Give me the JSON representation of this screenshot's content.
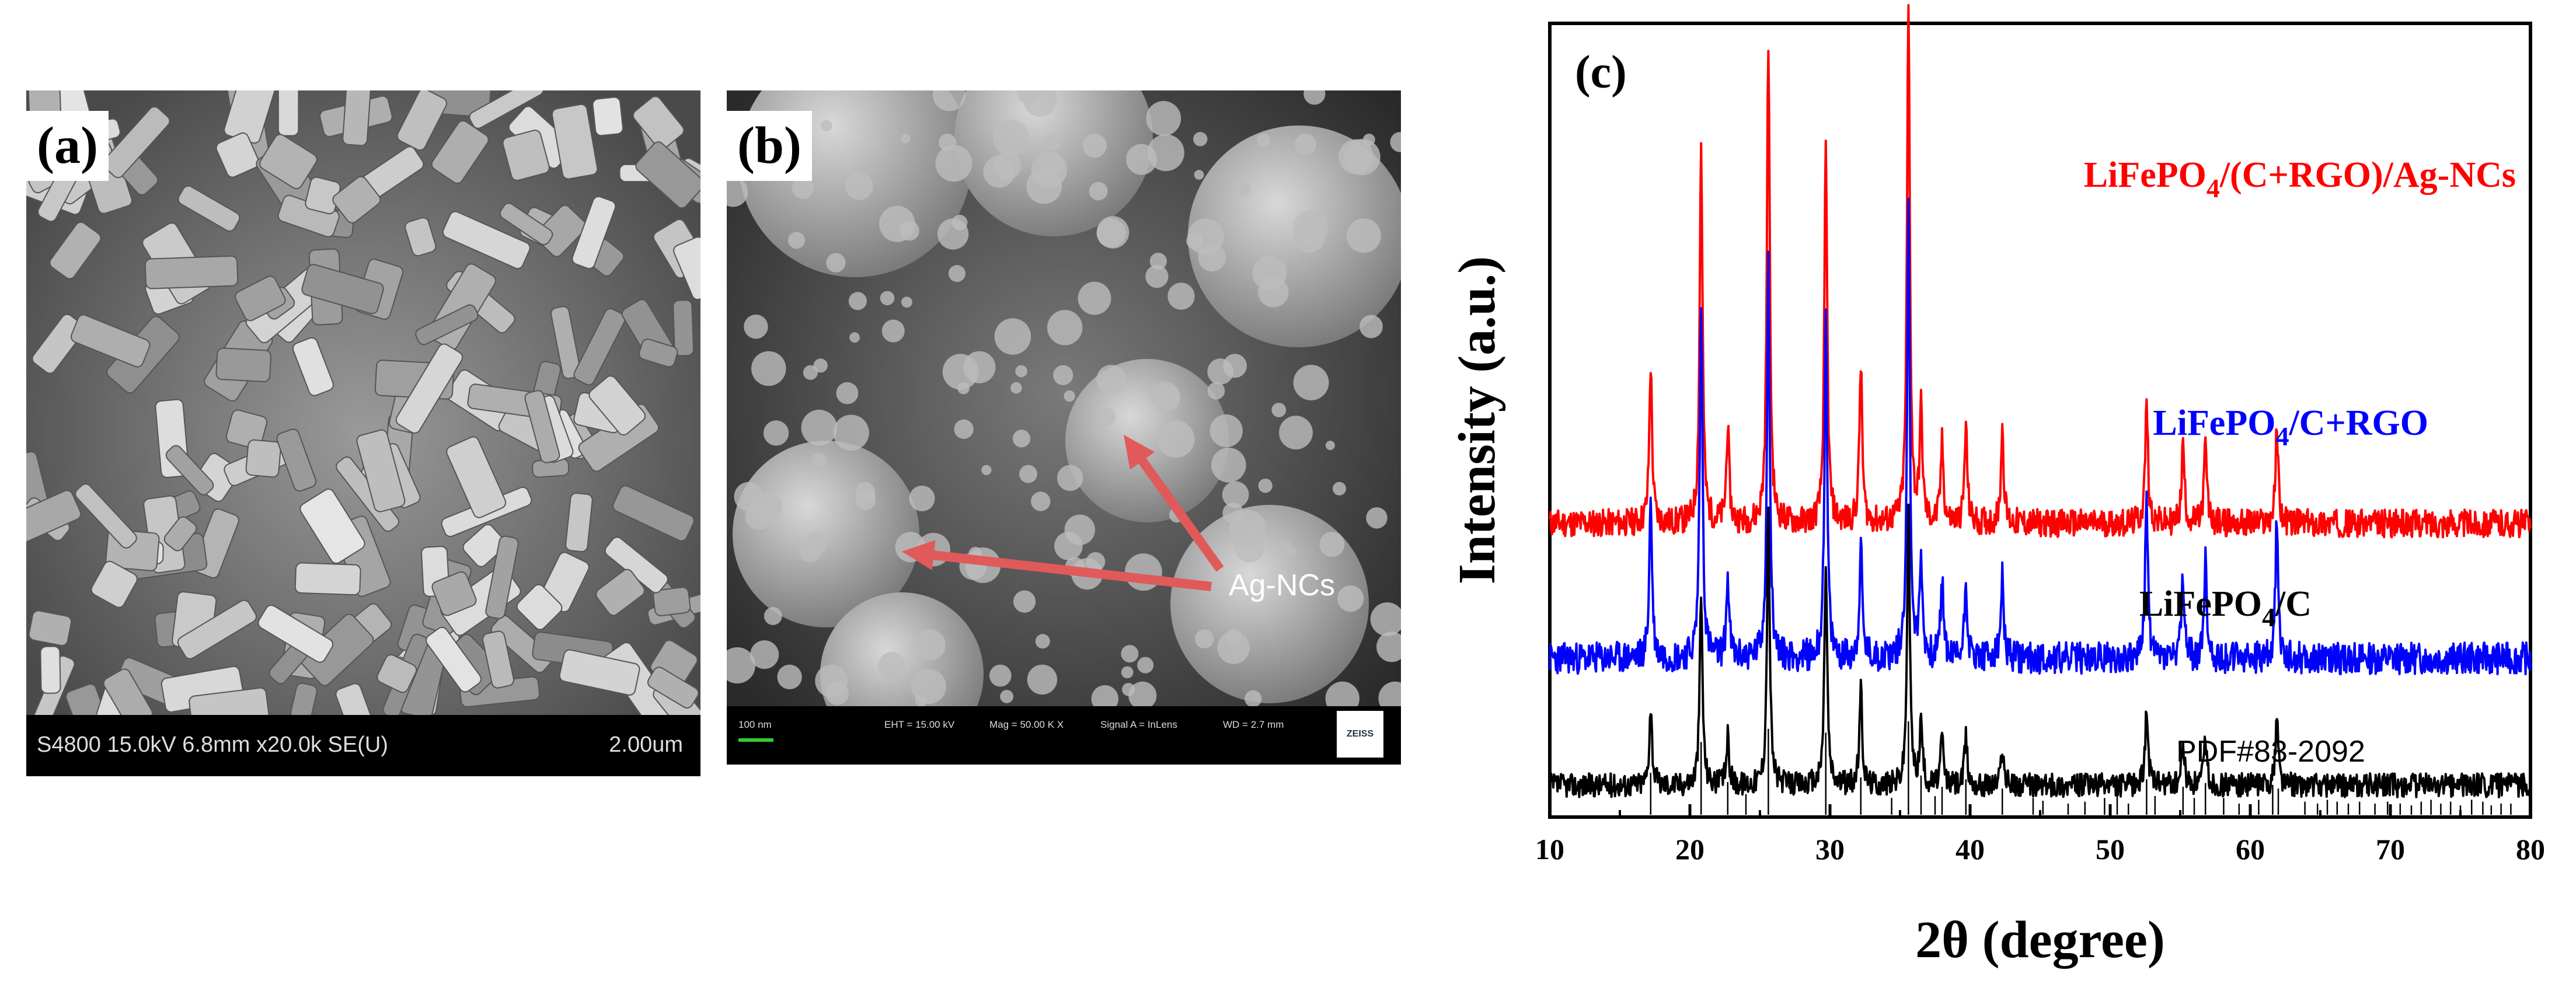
{
  "figure": {
    "panel_a": {
      "label": "(a)",
      "sem_info": "S4800 15.0kV 6.8mm x20.0k SE(U)",
      "scale_bar": "2.00um"
    },
    "panel_b": {
      "label": "(b)",
      "scale_bar": "100 nm",
      "eht": "EHT = 15.00 kV",
      "mag": "Mag =  50.00 K X",
      "signal": "Signal A = InLens",
      "wd": "WD =  2.7 mm",
      "logo": "ZEISS",
      "annotation": "Ag-NCs",
      "arrow_color": "#e05a5a"
    }
  },
  "chart_data": {
    "type": "line",
    "panel_label": "(c)",
    "xlabel": "2θ (degree)",
    "ylabel": "Intensity (a.u.)",
    "xlim": [
      10,
      80
    ],
    "xticks": [
      "10",
      "20",
      "30",
      "40",
      "50",
      "60",
      "70",
      "80"
    ],
    "yticks": [],
    "series": [
      {
        "name": "LiFePO4/(C+RGO)/Ag-NCs",
        "label_main": "LiFePO",
        "label_sub": "4",
        "label_rest": "/(C+RGO)/Ag-NCs",
        "color": "#ff0000",
        "baseline": 0.37,
        "noise": 0.035,
        "seed": 11,
        "peaks": [
          [
            17.2,
            0.2
          ],
          [
            20.8,
            0.48
          ],
          [
            22.7,
            0.12
          ],
          [
            25.6,
            0.61
          ],
          [
            29.7,
            0.47
          ],
          [
            32.2,
            0.2
          ],
          [
            35.6,
            0.65
          ],
          [
            36.5,
            0.14
          ],
          [
            38.0,
            0.1
          ],
          [
            39.7,
            0.12
          ],
          [
            42.3,
            0.12
          ],
          [
            52.6,
            0.15
          ],
          [
            55.2,
            0.1
          ],
          [
            56.8,
            0.1
          ],
          [
            61.9,
            0.12
          ]
        ]
      },
      {
        "name": "LiFePO4/C+RGO",
        "label_main": "LiFePO",
        "label_sub": "4",
        "label_rest": "/C+RGO",
        "color": "#0000ff",
        "baseline": 0.2,
        "noise": 0.04,
        "seed": 23,
        "peaks": [
          [
            17.2,
            0.2
          ],
          [
            20.8,
            0.45
          ],
          [
            22.7,
            0.1
          ],
          [
            25.6,
            0.5
          ],
          [
            29.7,
            0.42
          ],
          [
            32.2,
            0.14
          ],
          [
            35.6,
            0.56
          ],
          [
            36.5,
            0.12
          ],
          [
            38.0,
            0.1
          ],
          [
            39.7,
            0.1
          ],
          [
            42.3,
            0.1
          ],
          [
            52.6,
            0.2
          ],
          [
            55.2,
            0.1
          ],
          [
            56.8,
            0.12
          ],
          [
            61.9,
            0.18
          ]
        ]
      },
      {
        "name": "LiFePO4/C",
        "label_main": "LiFePO",
        "label_sub": "4",
        "label_rest": "/C",
        "color": "#000000",
        "baseline": 0.04,
        "noise": 0.03,
        "seed": 37,
        "peaks": [
          [
            17.2,
            0.1
          ],
          [
            20.8,
            0.24
          ],
          [
            22.7,
            0.06
          ],
          [
            25.6,
            0.34
          ],
          [
            29.7,
            0.28
          ],
          [
            32.2,
            0.12
          ],
          [
            35.6,
            0.34
          ],
          [
            36.5,
            0.08
          ],
          [
            38.0,
            0.06
          ],
          [
            39.7,
            0.06
          ],
          [
            42.3,
            0.05
          ],
          [
            52.6,
            0.1
          ],
          [
            55.2,
            0.05
          ],
          [
            56.8,
            0.06
          ],
          [
            61.9,
            0.09
          ]
        ]
      }
    ],
    "reference": {
      "label": "PDF#83-2092",
      "lines": [
        [
          17.2,
          0.45
        ],
        [
          20.8,
          0.78
        ],
        [
          22.7,
          0.35
        ],
        [
          24.0,
          0.22
        ],
        [
          25.6,
          0.92
        ],
        [
          29.7,
          0.88
        ],
        [
          32.2,
          0.4
        ],
        [
          34.4,
          0.18
        ],
        [
          35.6,
          1.0
        ],
        [
          36.5,
          0.42
        ],
        [
          37.5,
          0.2
        ],
        [
          38.0,
          0.3
        ],
        [
          39.7,
          0.38
        ],
        [
          42.3,
          0.28
        ],
        [
          44.5,
          0.18
        ],
        [
          45.2,
          0.15
        ],
        [
          47.0,
          0.12
        ],
        [
          48.2,
          0.14
        ],
        [
          49.6,
          0.18
        ],
        [
          50.5,
          0.22
        ],
        [
          51.3,
          0.12
        ],
        [
          52.6,
          0.38
        ],
        [
          53.2,
          0.2
        ],
        [
          55.2,
          0.3
        ],
        [
          56.0,
          0.18
        ],
        [
          56.8,
          0.34
        ],
        [
          58.1,
          0.18
        ],
        [
          59.2,
          0.12
        ],
        [
          60.6,
          0.16
        ],
        [
          61.6,
          0.32
        ],
        [
          62.0,
          0.28
        ],
        [
          63.9,
          0.14
        ],
        [
          64.8,
          0.12
        ],
        [
          65.5,
          0.16
        ],
        [
          66.2,
          0.14
        ],
        [
          67.0,
          0.12
        ],
        [
          67.8,
          0.14
        ],
        [
          68.9,
          0.12
        ],
        [
          69.8,
          0.14
        ],
        [
          70.7,
          0.12
        ],
        [
          71.5,
          0.1
        ],
        [
          72.2,
          0.14
        ],
        [
          72.9,
          0.16
        ],
        [
          73.6,
          0.12
        ],
        [
          74.3,
          0.14
        ],
        [
          75.0,
          0.1
        ],
        [
          75.8,
          0.16
        ],
        [
          76.6,
          0.14
        ],
        [
          77.2,
          0.1
        ],
        [
          77.9,
          0.12
        ],
        [
          78.6,
          0.12
        ]
      ]
    }
  }
}
